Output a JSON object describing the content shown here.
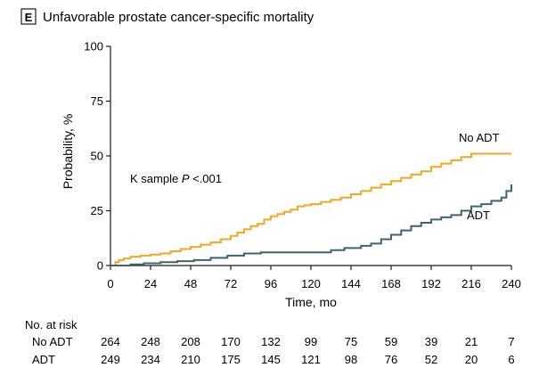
{
  "panel": {
    "letter": "E",
    "title": "Unfavorable prostate cancer-specific mortality"
  },
  "annotation": {
    "prefix": "K sample ",
    "italic": "P",
    "suffix": " <.001"
  },
  "risk_table": {
    "heading": "No. at risk",
    "rows": [
      {
        "label": "No ADT",
        "values": [
          "264",
          "248",
          "208",
          "170",
          "132",
          "99",
          "75",
          "59",
          "39",
          "21",
          "7"
        ]
      },
      {
        "label": "ADT",
        "values": [
          "249",
          "234",
          "210",
          "175",
          "145",
          "121",
          "98",
          "76",
          "52",
          "20",
          "6"
        ]
      }
    ]
  },
  "colors": {
    "no_adt": "#F5A623",
    "adt": "#3D6470",
    "axis": "#1a1a1a"
  },
  "chart_data": {
    "type": "line",
    "step": true,
    "xlabel": "Time, mo",
    "ylabel": "Probability, %",
    "xlim": [
      0,
      240
    ],
    "ylim": [
      0,
      100
    ],
    "xticks": [
      0,
      24,
      48,
      72,
      96,
      120,
      144,
      168,
      192,
      216,
      240
    ],
    "yticks": [
      0,
      25,
      50,
      75,
      100
    ],
    "grid": false,
    "series": [
      {
        "name": "No ADT",
        "color": "#F5A623",
        "x": [
          0,
          3,
          5,
          8,
          12,
          18,
          24,
          30,
          36,
          42,
          48,
          54,
          60,
          66,
          72,
          76,
          80,
          84,
          88,
          92,
          96,
          100,
          104,
          108,
          112,
          116,
          120,
          126,
          132,
          138,
          144,
          150,
          156,
          162,
          168,
          174,
          180,
          186,
          192,
          198,
          204,
          210,
          216,
          228,
          240
        ],
        "y": [
          0,
          1.5,
          2.5,
          3.2,
          4,
          4.5,
          5,
          5.5,
          6.5,
          7.5,
          8.5,
          9.5,
          10.5,
          12,
          13.5,
          15,
          16.5,
          18,
          19,
          21,
          22.5,
          23.5,
          24.5,
          25.5,
          27,
          27.5,
          28,
          29,
          30,
          31,
          32.5,
          34,
          35.5,
          37,
          38.5,
          40,
          41.5,
          43,
          45,
          46.5,
          48,
          49.5,
          51,
          51,
          51
        ]
      },
      {
        "name": "ADT",
        "color": "#3D6470",
        "x": [
          0,
          12,
          20,
          30,
          40,
          50,
          60,
          70,
          80,
          90,
          100,
          110,
          120,
          132,
          140,
          150,
          156,
          162,
          168,
          174,
          180,
          186,
          192,
          198,
          204,
          210,
          216,
          222,
          228,
          234,
          237,
          240
        ],
        "y": [
          0,
          0.5,
          1,
          1.5,
          2,
          2.5,
          3.5,
          4.5,
          5.5,
          6,
          6,
          6,
          6,
          7,
          8,
          9,
          10,
          12,
          14,
          16,
          18,
          19.5,
          21,
          22,
          23,
          25,
          27,
          28,
          29.5,
          31,
          34,
          37
        ]
      }
    ],
    "legend": [
      "No ADT",
      "ADT"
    ]
  }
}
